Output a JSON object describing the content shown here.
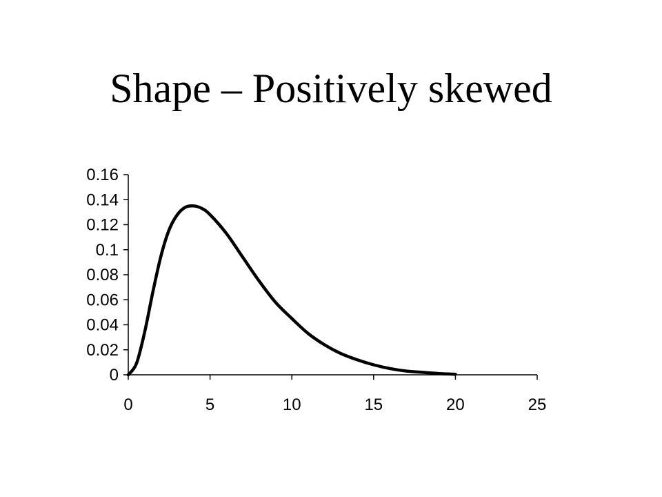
{
  "slide": {
    "title": "Shape – Positively skewed"
  },
  "chart_data": {
    "type": "line",
    "title": "",
    "xlabel": "",
    "ylabel": "",
    "xlim": [
      0,
      25
    ],
    "ylim": [
      0,
      0.16
    ],
    "x_ticks": [
      0,
      5,
      10,
      15,
      20,
      25
    ],
    "y_ticks": [
      0,
      0.02,
      0.04,
      0.06,
      0.08,
      0.1,
      0.12,
      0.14,
      0.16
    ],
    "x_tick_labels": [
      "0",
      "5",
      "10",
      "15",
      "20",
      "25"
    ],
    "y_tick_labels": [
      "0",
      "0.02",
      "0.04",
      "0.06",
      "0.08",
      "0.1",
      "0.12",
      "0.14",
      "0.16"
    ],
    "grid": false,
    "legend": "none",
    "line_color": "#000000",
    "series": [
      {
        "x": [
          0,
          0.5,
          1,
          1.5,
          2,
          2.5,
          3,
          3.5,
          4,
          4.5,
          5,
          6,
          7,
          8,
          9,
          10,
          11,
          12,
          13,
          14,
          15,
          16,
          17,
          18,
          19,
          20
        ],
        "values": [
          0,
          0.009,
          0.034,
          0.066,
          0.095,
          0.116,
          0.128,
          0.134,
          0.135,
          0.133,
          0.128,
          0.113,
          0.094,
          0.075,
          0.058,
          0.045,
          0.033,
          0.024,
          0.017,
          0.012,
          0.008,
          0.005,
          0.003,
          0.002,
          0.001,
          0.0005
        ]
      }
    ]
  }
}
